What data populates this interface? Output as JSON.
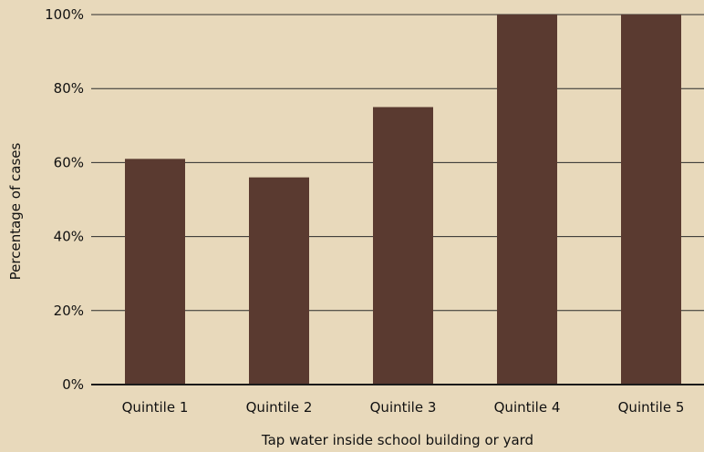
{
  "chart_data": {
    "type": "bar",
    "categories": [
      "Quintile 1",
      "Quintile 2",
      "Quintile 3",
      "Quintile 4",
      "Quintile 5"
    ],
    "values": [
      61,
      56,
      75,
      100,
      100
    ],
    "xlabel": "Tap water inside school building or yard",
    "ylabel": "Percentage of cases",
    "ylim": [
      0,
      100
    ],
    "yticks": [
      "0%",
      "20%",
      "40%",
      "60%",
      "80%",
      "100%"
    ],
    "ytick_values": [
      0,
      20,
      40,
      60,
      80,
      100
    ],
    "grid": true,
    "bar_color": "#5a3a30",
    "background_color": "#e8d9bb"
  }
}
